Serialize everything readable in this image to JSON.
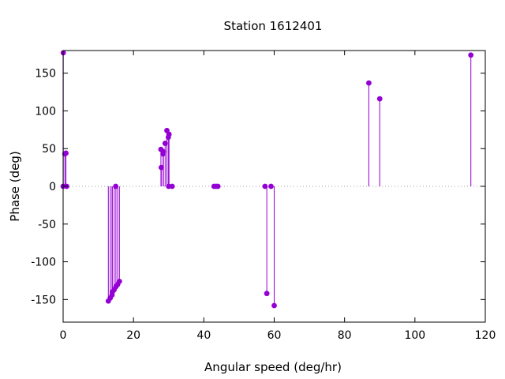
{
  "chart_data": {
    "type": "scatter",
    "style": "impulses-with-points",
    "title": "Station 1612401",
    "xlabel": "Angular speed (deg/hr)",
    "ylabel": "Phase (deg)",
    "xlim": [
      0,
      120
    ],
    "ylim": [
      -180,
      180
    ],
    "xticks": [
      0,
      20,
      40,
      60,
      80,
      100,
      120
    ],
    "yticks": [
      -150,
      -100,
      -50,
      0,
      50,
      100,
      150
    ],
    "zero_line": true,
    "grid": false,
    "color": "#9400d3",
    "series": [
      {
        "x": [
          0.0,
          0.04,
          0.5,
          0.8,
          1.0,
          12.85,
          13.4,
          13.9,
          14.0,
          14.5,
          14.95,
          15.0,
          15.5,
          16.0,
          27.8,
          27.9,
          28.4,
          28.5,
          29.0,
          29.5,
          29.9,
          30.0,
          30.1,
          31.0,
          42.9,
          43.5,
          44.0,
          57.4,
          57.9,
          59.1,
          60.0,
          86.9,
          90.0,
          115.9
        ],
        "values": [
          0,
          177,
          43,
          44,
          0,
          -152,
          -148,
          -144,
          -140,
          -137,
          0,
          -133,
          -130,
          -126,
          49,
          25,
          43,
          46,
          57,
          74,
          65,
          0,
          69,
          0,
          0,
          0,
          0,
          0,
          -142,
          0,
          -158,
          137,
          116,
          174
        ]
      }
    ]
  }
}
